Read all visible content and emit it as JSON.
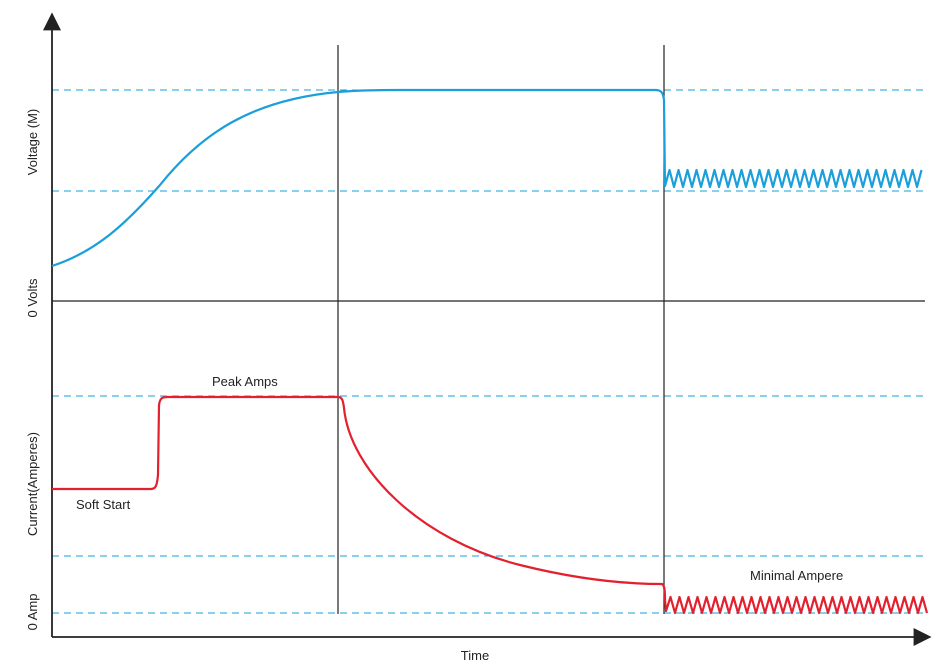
{
  "chart_data": {
    "type": "line",
    "xlabel": "Time",
    "ylabels": {
      "voltage": "Voltage (M)",
      "voltage_zero": "0 Volts",
      "current": "Current(Amperes)",
      "current_zero": "0 Amp"
    },
    "annotations": {
      "soft_start": "Soft Start",
      "peak_amps": "Peak Amps",
      "minimal_ampere": "Minimal Ampere"
    },
    "series": [
      {
        "name": "Voltage",
        "color": "#1a9fdb"
      },
      {
        "name": "Current",
        "color": "#e3202e"
      }
    ],
    "grid": "dashed reference levels",
    "axes_color": "#222222"
  }
}
